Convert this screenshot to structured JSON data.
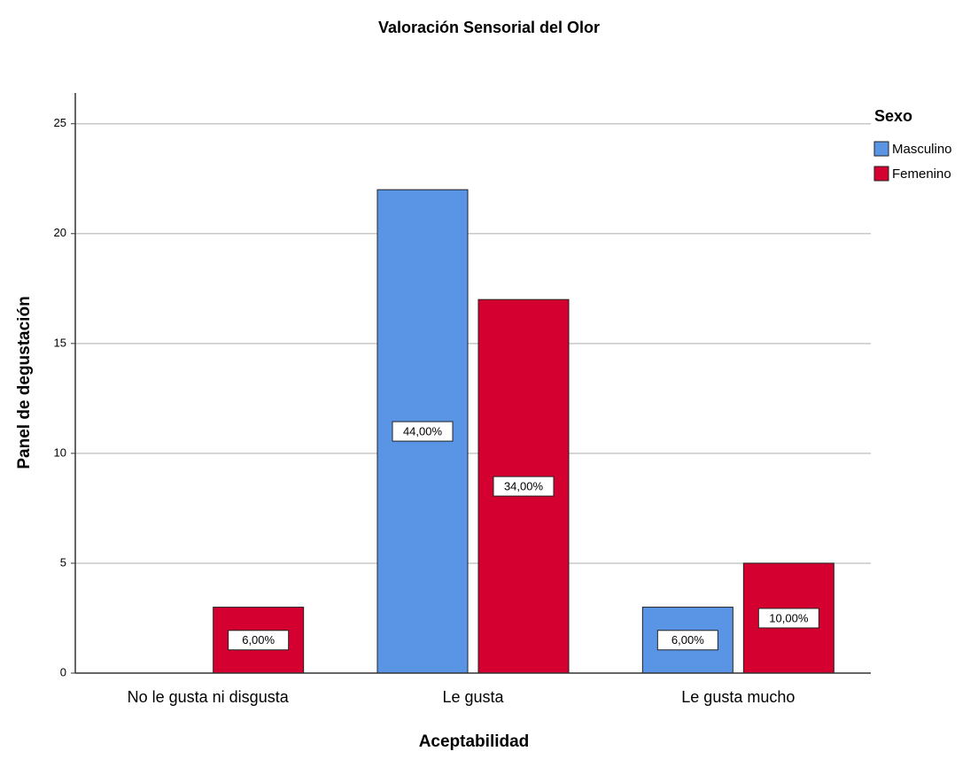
{
  "chart_data": {
    "type": "bar",
    "title": "Valoración Sensorial del Olor",
    "xlabel": "Aceptabilidad",
    "ylabel": "Panel de degustación",
    "categories": [
      "No le gusta ni disgusta",
      "Le gusta",
      "Le gusta mucho"
    ],
    "series": [
      {
        "name": "Masculino",
        "color": "#5a95e5",
        "values": [
          0,
          22,
          3
        ],
        "percent_labels": [
          null,
          "44,00%",
          "6,00%"
        ]
      },
      {
        "name": "Femenino",
        "color": "#d4002f",
        "values": [
          3,
          17,
          5
        ],
        "percent_labels": [
          "6,00%",
          "34,00%",
          "10,00%"
        ]
      }
    ],
    "legend_title": "Sexo",
    "legend": "right",
    "ylim": [
      0,
      26.4
    ],
    "yticks": [
      0,
      5,
      10,
      15,
      20,
      25
    ],
    "grid": true
  }
}
